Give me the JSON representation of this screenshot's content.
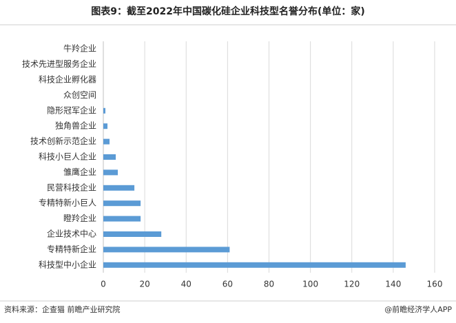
{
  "chart_data": {
    "type": "bar",
    "orientation": "horizontal",
    "title": "图表9：截至2022年中国碳化硅企业科技型名誉分布(单位：家)",
    "source": "资料来源：企查猫 前瞻产业研究院",
    "credit": "@前瞻经济学人APP",
    "categories": [
      "牛羚企业",
      "技术先进型服务企业",
      "科技企业孵化器",
      "众创空间",
      "隐形冠军企业",
      "独角兽企业",
      "技术创新示范企业",
      "科技小巨人企业",
      "雏鹰企业",
      "民营科技企业",
      "专精特新小巨人",
      "瞪羚企业",
      "企业技术中心",
      "专精特新企业",
      "科技型中小企业"
    ],
    "values": [
      0,
      0,
      0,
      0,
      1,
      2,
      3,
      6,
      7,
      15,
      18,
      18,
      28,
      61,
      146
    ],
    "color": "#5b9bd5",
    "xlim": [
      0,
      160
    ],
    "xticks": [
      0,
      20,
      40,
      60,
      80,
      100,
      120,
      140,
      160
    ],
    "grid": true
  }
}
